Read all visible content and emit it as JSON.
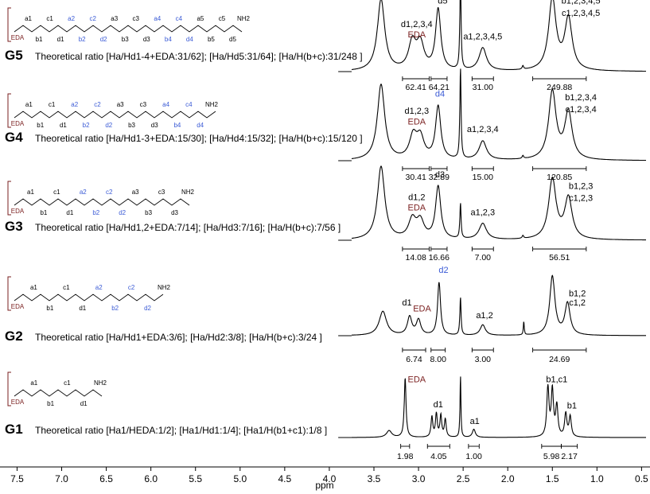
{
  "chart_data": {
    "type": "line",
    "xlabel": "ppm",
    "xlim": [
      7.62,
      0.45
    ],
    "x_reversed": true,
    "x_ticks": [
      "7.5",
      "7.0",
      "6.5",
      "6.0",
      "5.5",
      "5.0",
      "4.5",
      "4.0",
      "3.5",
      "3.0",
      "2.5",
      "2.0",
      "1.5",
      "1.0",
      "0.5"
    ],
    "colors": {
      "line": "#000000",
      "eda": "#7a1f1f",
      "blue": "#3b5bd6"
    },
    "spectra": [
      {
        "name": "G5",
        "ratio_text": "Theoretical ratio [Ha/Hd1-4+EDA:31/62]; [Ha/Hd5:31/64]; [Ha/H(b+c):31/248 ]",
        "peaks": [
          {
            "ppm": 3.42,
            "h": 1.0,
            "w": 0.05
          },
          {
            "ppm": 3.07,
            "h": 0.38,
            "w": 0.05
          },
          {
            "ppm": 2.98,
            "h": 0.36,
            "w": 0.05
          },
          {
            "ppm": 2.78,
            "h": 0.85,
            "w": 0.035
          },
          {
            "ppm": 2.53,
            "h": 1.3,
            "w": 0.008
          },
          {
            "ppm": 2.28,
            "h": 0.32,
            "w": 0.05
          },
          {
            "ppm": 1.83,
            "h": 0.05,
            "w": 0.01
          },
          {
            "ppm": 1.5,
            "h": 1.0,
            "w": 0.05
          },
          {
            "ppm": 1.32,
            "h": 0.72,
            "w": 0.05
          }
        ],
        "labels": [
          {
            "text": "d1,2,3,4",
            "ppm": 3.02,
            "lvl": 0.62,
            "color": "#000000"
          },
          {
            "text": "EDA",
            "ppm": 3.02,
            "lvl": 0.48,
            "color": "#7a1f1f"
          },
          {
            "text": "d5",
            "ppm": 2.73,
            "lvl": 0.95,
            "color": "#000000"
          },
          {
            "text": "a1,2,3,4,5",
            "ppm": 2.28,
            "lvl": 0.45,
            "color": "#000000"
          },
          {
            "text": "b1,2,3,4,5",
            "ppm": 1.18,
            "lvl": 0.95,
            "color": "#000000"
          },
          {
            "text": "c1,2,3,4,5",
            "ppm": 1.18,
            "lvl": 0.78,
            "color": "#000000"
          }
        ],
        "integrals": [
          {
            "from": 3.18,
            "to": 2.88,
            "value": "62.41"
          },
          {
            "from": 2.86,
            "to": 2.68,
            "value": "64.21"
          },
          {
            "from": 2.4,
            "to": 2.16,
            "value": "31.00"
          },
          {
            "from": 1.72,
            "to": 1.12,
            "value": "249.88"
          }
        ]
      },
      {
        "name": "G4",
        "ratio_text": "Theoretical ratio [Ha/Hd1-3+EDA:15/30]; [Ha/Hd4:15/32]; [Ha/H(b+c):15/120 ]",
        "peaks": [
          {
            "ppm": 3.42,
            "h": 1.0,
            "w": 0.05
          },
          {
            "ppm": 3.06,
            "h": 0.3,
            "w": 0.05
          },
          {
            "ppm": 2.98,
            "h": 0.28,
            "w": 0.05
          },
          {
            "ppm": 2.78,
            "h": 0.7,
            "w": 0.035
          },
          {
            "ppm": 2.53,
            "h": 1.2,
            "w": 0.008
          },
          {
            "ppm": 2.28,
            "h": 0.25,
            "w": 0.05
          },
          {
            "ppm": 1.83,
            "h": 0.04,
            "w": 0.01
          },
          {
            "ppm": 1.5,
            "h": 0.9,
            "w": 0.05
          },
          {
            "ppm": 1.32,
            "h": 0.62,
            "w": 0.05
          }
        ],
        "labels": [
          {
            "text": "d1,2,3",
            "ppm": 3.02,
            "lvl": 0.62,
            "color": "#000000"
          },
          {
            "text": "EDA",
            "ppm": 3.02,
            "lvl": 0.48,
            "color": "#7a1f1f"
          },
          {
            "text": "d4",
            "ppm": 2.76,
            "lvl": 0.85,
            "color": "#3b5bd6"
          },
          {
            "text": "a1,2,3,4",
            "ppm": 2.28,
            "lvl": 0.38,
            "color": "#000000"
          },
          {
            "text": "b1,2,3,4",
            "ppm": 1.18,
            "lvl": 0.8,
            "color": "#000000"
          },
          {
            "text": "c1,2,3,4",
            "ppm": 1.18,
            "lvl": 0.64,
            "color": "#000000"
          }
        ],
        "integrals": [
          {
            "from": 3.18,
            "to": 2.88,
            "value": "30.41"
          },
          {
            "from": 2.86,
            "to": 2.68,
            "value": "32.89"
          },
          {
            "from": 2.4,
            "to": 2.16,
            "value": "15.00"
          },
          {
            "from": 1.72,
            "to": 1.12,
            "value": "120.85"
          }
        ]
      },
      {
        "name": "G3",
        "ratio_text": "Theoretical ratio [Ha/Hd1,2+EDA:7/14]; [Ha/Hd3:7/16]; [Ha/H(b+c):7/56 ]",
        "peaks": [
          {
            "ppm": 3.42,
            "h": 1.0,
            "w": 0.05
          },
          {
            "ppm": 3.07,
            "h": 0.26,
            "w": 0.05
          },
          {
            "ppm": 2.98,
            "h": 0.24,
            "w": 0.05
          },
          {
            "ppm": 2.78,
            "h": 0.72,
            "w": 0.035
          },
          {
            "ppm": 2.53,
            "h": 0.48,
            "w": 0.008
          },
          {
            "ppm": 2.28,
            "h": 0.22,
            "w": 0.05
          },
          {
            "ppm": 1.83,
            "h": 0.04,
            "w": 0.01
          },
          {
            "ppm": 1.5,
            "h": 0.82,
            "w": 0.05
          },
          {
            "ppm": 1.32,
            "h": 0.56,
            "w": 0.05
          }
        ],
        "labels": [
          {
            "text": "d1,2",
            "ppm": 3.02,
            "lvl": 0.55,
            "color": "#000000"
          },
          {
            "text": "EDA",
            "ppm": 3.02,
            "lvl": 0.41,
            "color": "#7a1f1f"
          },
          {
            "text": "d3",
            "ppm": 2.76,
            "lvl": 0.86,
            "color": "#000000"
          },
          {
            "text": "a1,2,3",
            "ppm": 2.28,
            "lvl": 0.34,
            "color": "#000000"
          },
          {
            "text": "b1,2,3",
            "ppm": 1.18,
            "lvl": 0.7,
            "color": "#000000"
          },
          {
            "text": "c1,2,3",
            "ppm": 1.18,
            "lvl": 0.54,
            "color": "#000000"
          }
        ],
        "integrals": [
          {
            "from": 3.18,
            "to": 2.88,
            "value": "14.08"
          },
          {
            "from": 2.86,
            "to": 2.68,
            "value": "16.66"
          },
          {
            "from": 2.4,
            "to": 2.16,
            "value": "7.00"
          },
          {
            "from": 1.72,
            "to": 1.12,
            "value": "56.51"
          }
        ]
      },
      {
        "name": "G2",
        "ratio_text": "Theoretical ratio [Ha/Hd1+EDA:3/6]; [Ha/Hd2:3/8]; [Ha/H(b+c):3/24 ]",
        "peaks": [
          {
            "ppm": 3.4,
            "h": 0.32,
            "w": 0.05
          },
          {
            "ppm": 3.1,
            "h": 0.24,
            "w": 0.03
          },
          {
            "ppm": 3.0,
            "h": 0.2,
            "w": 0.03
          },
          {
            "ppm": 2.77,
            "h": 0.7,
            "w": 0.02
          },
          {
            "ppm": 2.53,
            "h": 0.5,
            "w": 0.008
          },
          {
            "ppm": 2.28,
            "h": 0.14,
            "w": 0.035
          },
          {
            "ppm": 1.82,
            "h": 0.18,
            "w": 0.006
          },
          {
            "ppm": 1.5,
            "h": 0.78,
            "w": 0.035
          },
          {
            "ppm": 1.33,
            "h": 0.42,
            "w": 0.035
          }
        ],
        "labels": [
          {
            "text": "d1",
            "ppm": 3.13,
            "lvl": 0.4,
            "color": "#000000"
          },
          {
            "text": "EDA",
            "ppm": 2.96,
            "lvl": 0.32,
            "color": "#7a1f1f"
          },
          {
            "text": "d2",
            "ppm": 2.72,
            "lvl": 0.83,
            "color": "#3b5bd6"
          },
          {
            "text": "a1,2",
            "ppm": 2.26,
            "lvl": 0.23,
            "color": "#000000"
          },
          {
            "text": "b1,2",
            "ppm": 1.22,
            "lvl": 0.52,
            "color": "#000000"
          },
          {
            "text": "c1,2",
            "ppm": 1.22,
            "lvl": 0.4,
            "color": "#000000"
          }
        ],
        "integrals": [
          {
            "from": 3.18,
            "to": 2.92,
            "value": "6.74"
          },
          {
            "from": 2.86,
            "to": 2.7,
            "value": "8.00"
          },
          {
            "from": 2.4,
            "to": 2.16,
            "value": "3.00"
          },
          {
            "from": 1.72,
            "to": 1.12,
            "value": "24.69"
          }
        ]
      },
      {
        "name": "G1",
        "ratio_text": "Theoretical ratio [Ha1/HEDA:1/2]; [Ha1/Hd1:1/4]; [Ha1/H(b1+c1):1/8 ]",
        "peaks": [
          {
            "ppm": 3.33,
            "h": 0.1,
            "w": 0.035
          },
          {
            "ppm": 3.15,
            "h": 0.88,
            "w": 0.012
          },
          {
            "ppm": 2.85,
            "h": 0.3,
            "w": 0.012
          },
          {
            "ppm": 2.8,
            "h": 0.34,
            "w": 0.012
          },
          {
            "ppm": 2.75,
            "h": 0.32,
            "w": 0.012
          },
          {
            "ppm": 2.7,
            "h": 0.26,
            "w": 0.012
          },
          {
            "ppm": 2.53,
            "h": 0.92,
            "w": 0.006
          },
          {
            "ppm": 2.38,
            "h": 0.12,
            "w": 0.02
          },
          {
            "ppm": 1.55,
            "h": 0.72,
            "w": 0.015
          },
          {
            "ppm": 1.5,
            "h": 0.68,
            "w": 0.015
          },
          {
            "ppm": 1.45,
            "h": 0.45,
            "w": 0.015
          },
          {
            "ppm": 1.35,
            "h": 0.34,
            "w": 0.015
          },
          {
            "ppm": 1.3,
            "h": 0.3,
            "w": 0.015
          }
        ],
        "labels": [
          {
            "text": "EDA",
            "ppm": 3.02,
            "lvl": 0.82,
            "color": "#7a1f1f"
          },
          {
            "text": "d1",
            "ppm": 2.78,
            "lvl": 0.45,
            "color": "#000000"
          },
          {
            "text": "a1",
            "ppm": 2.37,
            "lvl": 0.2,
            "color": "#000000"
          },
          {
            "text": "b1,c1",
            "ppm": 1.45,
            "lvl": 0.82,
            "color": "#000000"
          },
          {
            "text": "b1",
            "ppm": 1.28,
            "lvl": 0.43,
            "color": "#000000"
          }
        ],
        "integrals": [
          {
            "from": 3.2,
            "to": 3.1,
            "value": "1.98"
          },
          {
            "from": 2.9,
            "to": 2.65,
            "value": "4.05"
          },
          {
            "from": 2.44,
            "to": 2.32,
            "value": "1.00"
          },
          {
            "from": 1.62,
            "to": 1.4,
            "value": "5.98"
          },
          {
            "from": 1.4,
            "to": 1.22,
            "value": "2.17"
          }
        ]
      }
    ]
  },
  "structures": [
    {
      "name": "G5",
      "labels": [
        "EDA",
        "a1",
        "b1",
        "c1",
        "d1",
        "a2",
        "b2",
        "c2",
        "d2",
        "a3",
        "b3",
        "c3",
        "d3",
        "a4",
        "b4",
        "c4",
        "d4",
        "a5",
        "b5",
        "c5",
        "d5",
        "NH2"
      ]
    },
    {
      "name": "G4",
      "labels": [
        "EDA",
        "a1",
        "b1",
        "c1",
        "d1",
        "a2",
        "b2",
        "c2",
        "d2",
        "a3",
        "b3",
        "c3",
        "d3",
        "a4",
        "b4",
        "c4",
        "d4",
        "NH2"
      ]
    },
    {
      "name": "G3",
      "labels": [
        "EDA",
        "a1",
        "b1",
        "c1",
        "d1",
        "a2",
        "b2",
        "c2",
        "d2",
        "a3",
        "b3",
        "c3",
        "d3",
        "NH2"
      ]
    },
    {
      "name": "G2",
      "labels": [
        "EDA",
        "a1",
        "b1",
        "c1",
        "d1",
        "a2",
        "b2",
        "c2",
        "d2",
        "NH2"
      ]
    },
    {
      "name": "G1",
      "labels": [
        "EDA",
        "a1",
        "b1",
        "c1",
        "d1",
        "NH2"
      ]
    }
  ]
}
